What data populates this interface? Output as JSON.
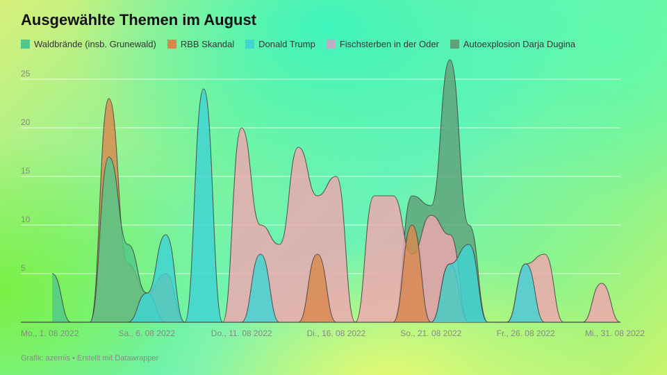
{
  "title": "Ausgewählte Themen im August",
  "footer": "Grafik: azernis • Erstellt mit Datawrapper",
  "chart_data": {
    "type": "area",
    "title": "Ausgewählte Themen im August",
    "ylim": [
      0,
      25
    ],
    "yticks": [
      "0",
      "5",
      "10",
      "15",
      "20",
      "25"
    ],
    "xticks": [
      {
        "x": 1,
        "label": "Mo., 1. 08 2022"
      },
      {
        "x": 6,
        "label": "Sa., 6. 08 2022"
      },
      {
        "x": 11,
        "label": "Do., 11. 08 2022"
      },
      {
        "x": 16,
        "label": "Di., 16. 08 2022"
      },
      {
        "x": 21,
        "label": "So., 21. 08 2022"
      },
      {
        "x": 26,
        "label": "Fr., 26. 08 2022"
      },
      {
        "x": 31,
        "label": "Mi., 31. 08 2022"
      }
    ],
    "x": [
      1,
      2,
      3,
      4,
      5,
      6,
      7,
      8,
      9,
      10,
      11,
      12,
      13,
      14,
      15,
      16,
      17,
      18,
      19,
      20,
      21,
      22,
      23,
      24,
      25,
      26,
      27,
      28,
      29,
      30,
      31
    ],
    "grid": true,
    "legend_position": "top-left",
    "series": [
      {
        "name": "Autoexplosion Darja Dugina",
        "color": "#5fa27a",
        "values": [
          0,
          0,
          0,
          0,
          0,
          0,
          0,
          0,
          0,
          0,
          0,
          0,
          0,
          0,
          0,
          0,
          0,
          0,
          0,
          13,
          12,
          27,
          10,
          0,
          0,
          0,
          0,
          0,
          0,
          0,
          0
        ]
      },
      {
        "name": "Fischsterben in der Oder",
        "color": "#f0a6b0",
        "values": [
          0,
          0,
          0,
          0,
          0,
          0,
          0,
          0,
          0,
          0,
          20,
          10,
          8,
          18,
          13,
          15,
          0,
          13,
          13,
          7,
          11,
          9,
          0,
          0,
          0,
          6,
          7,
          0,
          0,
          4,
          0
        ]
      },
      {
        "name": "RBB Skandal",
        "color": "#d8894e",
        "values": [
          0,
          0,
          0,
          23,
          6,
          3,
          5,
          0,
          0,
          0,
          0,
          0,
          0,
          0,
          0,
          0,
          0,
          0,
          0,
          0,
          0,
          0,
          0,
          0,
          0,
          0,
          0,
          0,
          0,
          0,
          0
        ]
      },
      {
        "name": "Waldbrände (insb. Grunewald)",
        "color": "#52c78a",
        "values": [
          5,
          0,
          0,
          17,
          8,
          3,
          0,
          0,
          0,
          0,
          0,
          0,
          0,
          0,
          0,
          0,
          0,
          0,
          0,
          0,
          0,
          0,
          0,
          0,
          0,
          0,
          0,
          0,
          0,
          0,
          0
        ]
      },
      {
        "name": "Donald Trump",
        "color": "#3fd3d4",
        "values": [
          0,
          0,
          0,
          0,
          0,
          3,
          9,
          0,
          24,
          0,
          0,
          7,
          0,
          0,
          0,
          0,
          0,
          0,
          0,
          0,
          0,
          0,
          0,
          0,
          0,
          6,
          0,
          0,
          0,
          0,
          0
        ]
      },
      {
        "name": "RBB Skandal",
        "color": "#d8894e",
        "values": [
          0,
          0,
          0,
          0,
          0,
          0,
          0,
          0,
          0,
          0,
          0,
          0,
          0,
          0,
          7,
          0,
          0,
          0,
          0,
          10,
          0,
          6,
          0,
          0,
          0,
          0,
          0,
          0,
          0,
          0,
          0
        ]
      },
      {
        "name": "Donald Trump",
        "color": "#3fd3d4",
        "values": [
          0,
          0,
          0,
          0,
          0,
          0,
          0,
          0,
          0,
          0,
          0,
          0,
          0,
          0,
          0,
          0,
          0,
          0,
          0,
          0,
          0,
          6,
          8,
          0,
          0,
          0,
          0,
          0,
          0,
          0,
          0
        ]
      }
    ],
    "legend": [
      {
        "name": "Waldbrände (insb. Grunewald)",
        "color": "#52c78a"
      },
      {
        "name": "RBB Skandal",
        "color": "#d8894e"
      },
      {
        "name": "Donald Trump",
        "color": "#3fd3d4"
      },
      {
        "name": "Fischsterben in der Oder",
        "color": "#b8aec6"
      },
      {
        "name": "Autoexplosion Darja Dugina",
        "color": "#5fa27a"
      }
    ]
  }
}
